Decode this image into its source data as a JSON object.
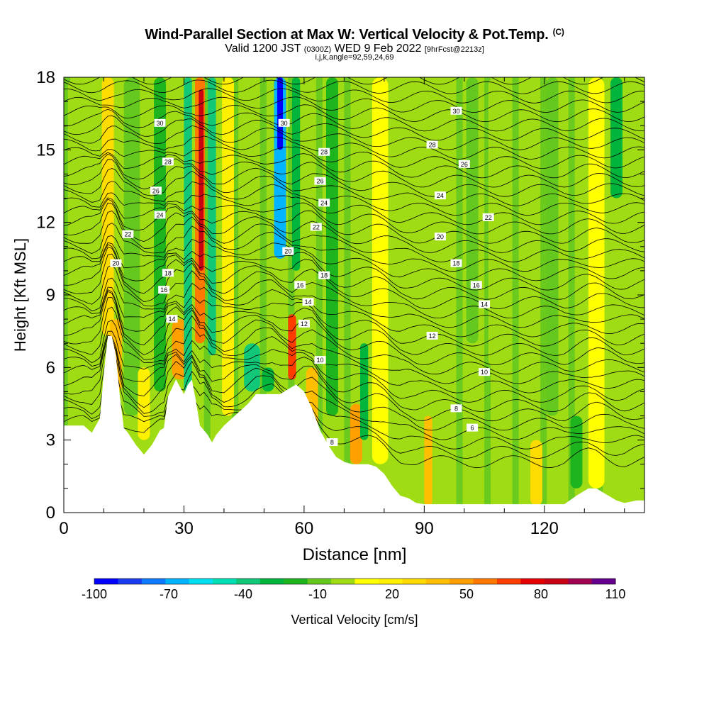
{
  "title": {
    "main": "Wind-Parallel Section at Max W: Vertical Velocity & Pot.Temp.",
    "copyright": "(C)",
    "valid_pre": "Valid 1200 JST",
    "valid_utc": "(0300Z)",
    "valid_post": "WED 9 Feb 2022",
    "fcst": "[9hrFcst@2213z]",
    "params": "i,j,k,angle=92,59,24,69"
  },
  "chart_data": {
    "type": "heatmap",
    "xlabel": "Distance [nm]",
    "ylabel": "Height [Kft MSL]",
    "xlim": [
      0,
      145
    ],
    "ylim": [
      0,
      18
    ],
    "xticks": [
      "0",
      "30",
      "60",
      "90",
      "120"
    ],
    "xtick_values": [
      0,
      30,
      60,
      90,
      120
    ],
    "yticks": [
      "0",
      "3",
      "6",
      "9",
      "12",
      "15",
      "18"
    ],
    "ytick_values": [
      0,
      3,
      6,
      9,
      12,
      15,
      18
    ],
    "colorbar": {
      "label": "Vertical Velocity [cm/s]",
      "tick_labels": [
        "-100",
        "-70",
        "-40",
        "-10",
        "20",
        "50",
        "80",
        "110"
      ],
      "bins": [
        -100,
        -90,
        -80,
        -70,
        -60,
        -50,
        -40,
        -30,
        -20,
        -10,
        0,
        10,
        20,
        30,
        40,
        50,
        60,
        70,
        80,
        90,
        100,
        110
      ],
      "colors": [
        "#0000ff",
        "#1a3cf0",
        "#0f78ff",
        "#00b4ff",
        "#00e0f0",
        "#00e0b4",
        "#10c878",
        "#00b43c",
        "#1eb41e",
        "#64c81e",
        "#a0dc14",
        "#ffff00",
        "#fff000",
        "#ffdc00",
        "#ffbe00",
        "#ffa000",
        "#ff7800",
        "#ff3c00",
        "#e60000",
        "#c80014",
        "#a00050",
        "#64008c"
      ]
    },
    "terrain_profile": {
      "distance": [
        0,
        5,
        7,
        9,
        10,
        11,
        12,
        13,
        14,
        15,
        16,
        18,
        20,
        22,
        24,
        25,
        26,
        28,
        30,
        31,
        32,
        33,
        34,
        35,
        36,
        37,
        38,
        40,
        42,
        44,
        46,
        48,
        50,
        52,
        54,
        56,
        58,
        60,
        62,
        64,
        66,
        68,
        70,
        72,
        74,
        76,
        78,
        80,
        82,
        84,
        86,
        88,
        90,
        92,
        95,
        100,
        105,
        110,
        115,
        120,
        125,
        128,
        131,
        133,
        135,
        138,
        140,
        143,
        145
      ],
      "height_kft": [
        3.6,
        3.6,
        3.3,
        3.9,
        5.8,
        7.3,
        7.3,
        6.5,
        4.8,
        3.5,
        3.3,
        2.8,
        2.4,
        2.8,
        3.4,
        3.5,
        4.8,
        5.5,
        4.9,
        5.3,
        5.5,
        4.6,
        3.6,
        3.4,
        3.2,
        2.9,
        3.2,
        3.6,
        3.9,
        4.2,
        4.5,
        4.9,
        4.9,
        4.9,
        4.9,
        5.1,
        5.3,
        5.0,
        4.3,
        3.4,
        2.8,
        2.3,
        2.1,
        2.0,
        2.0,
        2.0,
        1.9,
        1.6,
        1.1,
        0.7,
        0.6,
        0.4,
        0.35,
        0.35,
        0.35,
        0.35,
        0.35,
        0.35,
        0.35,
        0.35,
        0.35,
        0.7,
        1.0,
        1.0,
        0.8,
        0.5,
        0.4,
        0.5,
        0.5
      ]
    },
    "velocity_columns": [
      {
        "x": 6,
        "w": 10,
        "top": 18,
        "bottom": 3,
        "value": 0
      },
      {
        "x": 11,
        "w": 3,
        "top": 18,
        "bottom": 7.3,
        "value": 30
      },
      {
        "x": 13,
        "w": 3,
        "top": 8,
        "bottom": 5,
        "value": 40
      },
      {
        "x": 17,
        "w": 4,
        "top": 18,
        "bottom": 4,
        "value": -10
      },
      {
        "x": 20,
        "w": 3,
        "top": 6,
        "bottom": 3,
        "value": 20
      },
      {
        "x": 24,
        "w": 3,
        "top": 18,
        "bottom": 5,
        "value": -20
      },
      {
        "x": 29,
        "w": 4,
        "top": 8,
        "bottom": 5.5,
        "value": 50
      },
      {
        "x": 31,
        "w": 2,
        "top": 18,
        "bottom": 5,
        "value": -40
      },
      {
        "x": 34,
        "w": 2.5,
        "top": 18,
        "bottom": 7,
        "value": 60
      },
      {
        "x": 34.3,
        "w": 1.2,
        "top": 17.5,
        "bottom": 10,
        "value": 90
      },
      {
        "x": 37,
        "w": 2,
        "top": 18,
        "bottom": 6.5,
        "value": -40
      },
      {
        "x": 41,
        "w": 3,
        "top": 18,
        "bottom": 4,
        "value": 20
      },
      {
        "x": 47,
        "w": 4,
        "top": 7,
        "bottom": 5,
        "value": -40
      },
      {
        "x": 51,
        "w": 3,
        "top": 6,
        "bottom": 5,
        "value": -30
      },
      {
        "x": 54,
        "w": 3,
        "top": 18,
        "bottom": 10.5,
        "value": -70
      },
      {
        "x": 54,
        "w": 1.4,
        "top": 18,
        "bottom": 15,
        "value": -100
      },
      {
        "x": 57,
        "w": 2,
        "top": 8.2,
        "bottom": 5.5,
        "value": 70
      },
      {
        "x": 58,
        "w": 2,
        "top": 18,
        "bottom": 10,
        "value": -30
      },
      {
        "x": 62,
        "w": 3,
        "top": 6,
        "bottom": 3.5,
        "value": 40
      },
      {
        "x": 67,
        "w": 3,
        "top": 18,
        "bottom": 4,
        "value": -20
      },
      {
        "x": 73,
        "w": 3,
        "top": 4.5,
        "bottom": 2,
        "value": 50
      },
      {
        "x": 75,
        "w": 2,
        "top": 7,
        "bottom": 3,
        "value": -30
      },
      {
        "x": 79,
        "w": 4,
        "top": 18,
        "bottom": 2,
        "value": 10
      },
      {
        "x": 91,
        "w": 2,
        "top": 4,
        "bottom": 0.3,
        "value": 40
      },
      {
        "x": 95,
        "w": 3,
        "top": 18,
        "bottom": 5,
        "value": 0
      },
      {
        "x": 102,
        "w": 3,
        "top": 18,
        "bottom": 7,
        "value": -10
      },
      {
        "x": 108,
        "w": 4,
        "top": 18,
        "bottom": 6,
        "value": 0
      },
      {
        "x": 118,
        "w": 3,
        "top": 3,
        "bottom": 0.3,
        "value": 30
      },
      {
        "x": 122,
        "w": 3,
        "top": 18,
        "bottom": 4,
        "value": -10
      },
      {
        "x": 128,
        "w": 3,
        "top": 4,
        "bottom": 1,
        "value": -20
      },
      {
        "x": 133,
        "w": 4,
        "top": 18,
        "bottom": 1,
        "value": 10
      },
      {
        "x": 138,
        "w": 3,
        "top": 18,
        "bottom": 13,
        "value": -30
      },
      {
        "x": 143,
        "w": 3,
        "top": 18,
        "bottom": 2,
        "value": 0
      }
    ],
    "theta_contours": {
      "levels": [
        6,
        8,
        10,
        12,
        14,
        16,
        18,
        20,
        22,
        24,
        26,
        28,
        30
      ],
      "labels": [
        {
          "text": "6",
          "x": 102,
          "y": 3.5
        },
        {
          "text": "8",
          "x": 98,
          "y": 4.3
        },
        {
          "text": "8",
          "x": 67,
          "y": 2.9
        },
        {
          "text": "10",
          "x": 105,
          "y": 5.8
        },
        {
          "text": "10",
          "x": 64,
          "y": 6.3
        },
        {
          "text": "12",
          "x": 92,
          "y": 7.3
        },
        {
          "text": "12",
          "x": 60,
          "y": 7.8
        },
        {
          "text": "14",
          "x": 105,
          "y": 8.6
        },
        {
          "text": "14",
          "x": 61,
          "y": 8.7
        },
        {
          "text": "14",
          "x": 27,
          "y": 8.0
        },
        {
          "text": "16",
          "x": 103,
          "y": 9.4
        },
        {
          "text": "16",
          "x": 59,
          "y": 9.4
        },
        {
          "text": "16",
          "x": 25,
          "y": 9.2
        },
        {
          "text": "18",
          "x": 98,
          "y": 10.3
        },
        {
          "text": "18",
          "x": 65,
          "y": 9.8
        },
        {
          "text": "18",
          "x": 26,
          "y": 9.9
        },
        {
          "text": "20",
          "x": 94,
          "y": 11.4
        },
        {
          "text": "20",
          "x": 56,
          "y": 10.8
        },
        {
          "text": "20",
          "x": 13,
          "y": 10.3
        },
        {
          "text": "22",
          "x": 106,
          "y": 12.2
        },
        {
          "text": "22",
          "x": 63,
          "y": 11.8
        },
        {
          "text": "22",
          "x": 16,
          "y": 11.5
        },
        {
          "text": "24",
          "x": 94,
          "y": 13.1
        },
        {
          "text": "24",
          "x": 65,
          "y": 12.8
        },
        {
          "text": "24",
          "x": 24,
          "y": 12.3
        },
        {
          "text": "26",
          "x": 100,
          "y": 14.4
        },
        {
          "text": "26",
          "x": 64,
          "y": 13.7
        },
        {
          "text": "26",
          "x": 23,
          "y": 13.3
        },
        {
          "text": "28",
          "x": 92,
          "y": 15.2
        },
        {
          "text": "28",
          "x": 65,
          "y": 14.9
        },
        {
          "text": "28",
          "x": 26,
          "y": 14.5
        },
        {
          "text": "30",
          "x": 98,
          "y": 16.6
        },
        {
          "text": "30",
          "x": 55,
          "y": 16.1
        },
        {
          "text": "30",
          "x": 24,
          "y": 16.1
        }
      ]
    },
    "grid": false,
    "legend": "bottom"
  }
}
